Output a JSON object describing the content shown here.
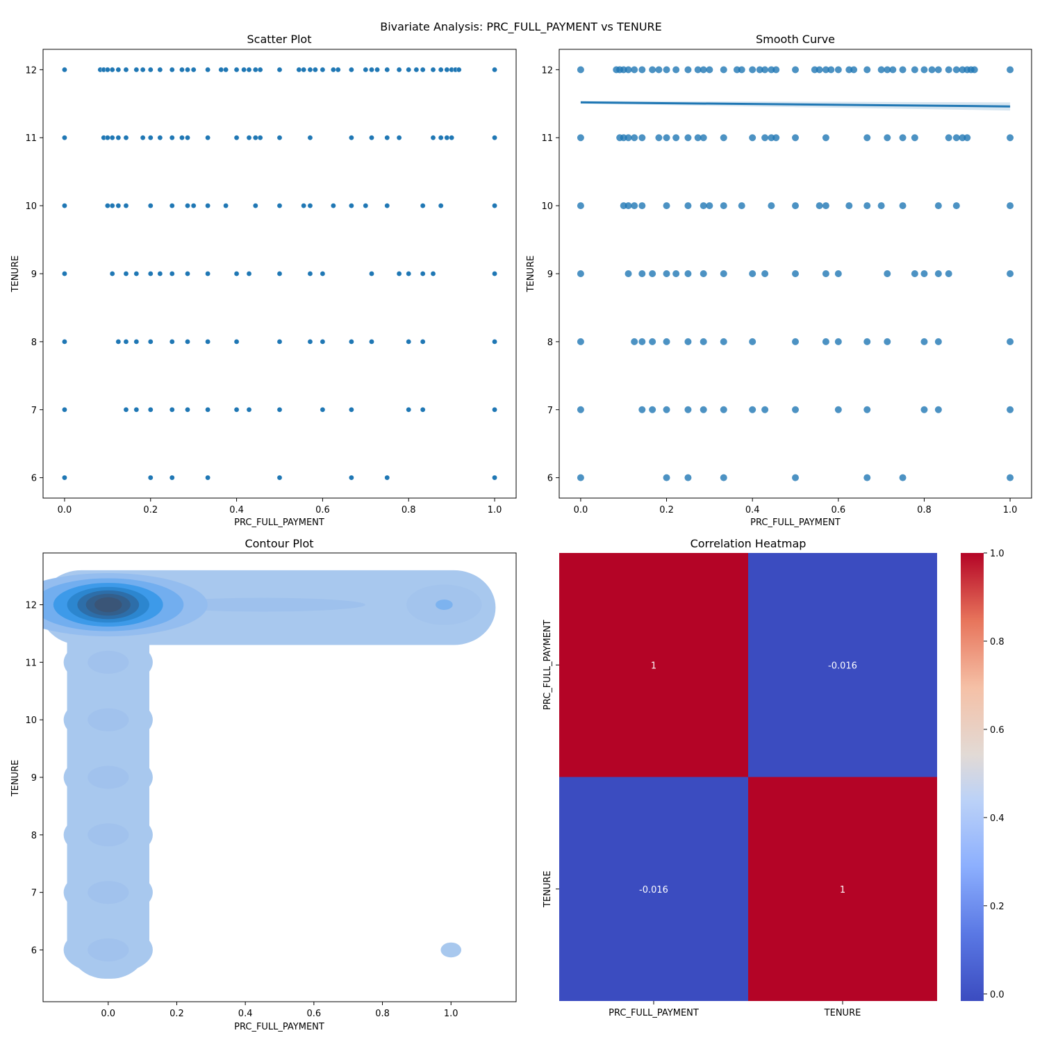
{
  "figure": {
    "suptitle": "Bivariate Analysis: PRC_FULL_PAYMENT vs TENURE"
  },
  "colors": {
    "point": "#1f77b4",
    "kde_low": "#a8c8ee",
    "kde_high": "#2f5077",
    "heat_high": "#b40426",
    "heat_low": "#3b4cc0"
  },
  "chart_data": [
    {
      "type": "scatter",
      "title": "Scatter Plot",
      "xlabel": "PRC_FULL_PAYMENT",
      "ylabel": "TENURE",
      "xlim": [
        -0.05,
        1.05
      ],
      "ylim": [
        5.7,
        12.3
      ],
      "xticks": [
        "0.0",
        "0.2",
        "0.4",
        "0.6",
        "0.8",
        "1.0"
      ],
      "yticks": [
        "6",
        "7",
        "8",
        "9",
        "10",
        "11",
        "12"
      ],
      "series": [
        {
          "y": 12,
          "x": [
            0,
            0.083,
            0.091,
            0.1,
            0.111,
            0.125,
            0.143,
            0.167,
            0.182,
            0.2,
            0.222,
            0.25,
            0.273,
            0.286,
            0.3,
            0.333,
            0.364,
            0.375,
            0.4,
            0.417,
            0.429,
            0.444,
            0.455,
            0.5,
            0.545,
            0.556,
            0.571,
            0.583,
            0.6,
            0.625,
            0.636,
            0.667,
            0.7,
            0.714,
            0.727,
            0.75,
            0.778,
            0.8,
            0.818,
            0.833,
            0.857,
            0.875,
            0.889,
            0.9,
            0.909,
            0.917,
            1.0
          ]
        },
        {
          "y": 11,
          "x": [
            0,
            0.091,
            0.1,
            0.111,
            0.125,
            0.143,
            0.182,
            0.2,
            0.222,
            0.25,
            0.273,
            0.286,
            0.333,
            0.4,
            0.429,
            0.444,
            0.455,
            0.5,
            0.571,
            0.667,
            0.714,
            0.75,
            0.778,
            0.857,
            0.875,
            0.889,
            0.9,
            1.0
          ]
        },
        {
          "y": 10,
          "x": [
            0,
            0.1,
            0.111,
            0.125,
            0.143,
            0.2,
            0.25,
            0.286,
            0.3,
            0.333,
            0.375,
            0.444,
            0.5,
            0.556,
            0.571,
            0.625,
            0.667,
            0.7,
            0.75,
            0.833,
            0.875,
            1.0
          ]
        },
        {
          "y": 9,
          "x": [
            0,
            0.111,
            0.143,
            0.167,
            0.2,
            0.222,
            0.25,
            0.286,
            0.333,
            0.4,
            0.429,
            0.5,
            0.571,
            0.6,
            0.714,
            0.778,
            0.8,
            0.833,
            0.857,
            1.0
          ]
        },
        {
          "y": 8,
          "x": [
            0,
            0.125,
            0.143,
            0.167,
            0.2,
            0.25,
            0.286,
            0.333,
            0.4,
            0.5,
            0.571,
            0.6,
            0.667,
            0.714,
            0.8,
            0.833,
            1.0
          ]
        },
        {
          "y": 7,
          "x": [
            0,
            0.143,
            0.167,
            0.2,
            0.25,
            0.286,
            0.333,
            0.4,
            0.429,
            0.5,
            0.6,
            0.667,
            0.8,
            0.833,
            1.0
          ]
        },
        {
          "y": 6,
          "x": [
            0,
            0.2,
            0.25,
            0.333,
            0.5,
            0.667,
            0.75,
            1.0
          ]
        }
      ]
    },
    {
      "type": "scatter",
      "title": "Smooth Curve",
      "xlabel": "PRC_FULL_PAYMENT",
      "ylabel": "TENURE",
      "xlim": [
        -0.05,
        1.05
      ],
      "ylim": [
        5.7,
        12.3
      ],
      "xticks": [
        "0.0",
        "0.2",
        "0.4",
        "0.6",
        "0.8",
        "1.0"
      ],
      "yticks": [
        "6",
        "7",
        "8",
        "9",
        "10",
        "11",
        "12"
      ],
      "series": [
        {
          "y": 12,
          "x": [
            0,
            0.083,
            0.091,
            0.1,
            0.111,
            0.125,
            0.143,
            0.167,
            0.182,
            0.2,
            0.222,
            0.25,
            0.273,
            0.286,
            0.3,
            0.333,
            0.364,
            0.375,
            0.4,
            0.417,
            0.429,
            0.444,
            0.455,
            0.5,
            0.545,
            0.556,
            0.571,
            0.583,
            0.6,
            0.625,
            0.636,
            0.667,
            0.7,
            0.714,
            0.727,
            0.75,
            0.778,
            0.8,
            0.818,
            0.833,
            0.857,
            0.875,
            0.889,
            0.9,
            0.909,
            0.917,
            1.0
          ]
        },
        {
          "y": 11,
          "x": [
            0,
            0.091,
            0.1,
            0.111,
            0.125,
            0.143,
            0.182,
            0.2,
            0.222,
            0.25,
            0.273,
            0.286,
            0.333,
            0.4,
            0.429,
            0.444,
            0.455,
            0.5,
            0.571,
            0.667,
            0.714,
            0.75,
            0.778,
            0.857,
            0.875,
            0.889,
            0.9,
            1.0
          ]
        },
        {
          "y": 10,
          "x": [
            0,
            0.1,
            0.111,
            0.125,
            0.143,
            0.2,
            0.25,
            0.286,
            0.3,
            0.333,
            0.375,
            0.444,
            0.5,
            0.556,
            0.571,
            0.625,
            0.667,
            0.7,
            0.75,
            0.833,
            0.875,
            1.0
          ]
        },
        {
          "y": 9,
          "x": [
            0,
            0.111,
            0.143,
            0.167,
            0.2,
            0.222,
            0.25,
            0.286,
            0.333,
            0.4,
            0.429,
            0.5,
            0.571,
            0.6,
            0.714,
            0.778,
            0.8,
            0.833,
            0.857,
            1.0
          ]
        },
        {
          "y": 8,
          "x": [
            0,
            0.125,
            0.143,
            0.167,
            0.2,
            0.25,
            0.286,
            0.333,
            0.4,
            0.5,
            0.571,
            0.6,
            0.667,
            0.714,
            0.8,
            0.833,
            1.0
          ]
        },
        {
          "y": 7,
          "x": [
            0,
            0.143,
            0.167,
            0.2,
            0.25,
            0.286,
            0.333,
            0.4,
            0.429,
            0.5,
            0.6,
            0.667,
            0.8,
            0.833,
            1.0
          ]
        },
        {
          "y": 6,
          "x": [
            0,
            0.2,
            0.25,
            0.333,
            0.5,
            0.667,
            0.75,
            1.0
          ]
        }
      ],
      "regression": {
        "x": [
          0,
          1.0
        ],
        "y": [
          11.52,
          11.46
        ],
        "ci_half_width": [
          0.02,
          0.06
        ]
      }
    },
    {
      "type": "area",
      "title": "Contour Plot",
      "xlabel": "PRC_FULL_PAYMENT",
      "ylabel": "TENURE",
      "xlim": [
        -0.19,
        1.19
      ],
      "ylim": [
        5.1,
        12.9
      ],
      "xticks": [
        "0.0",
        "0.2",
        "0.4",
        "0.6",
        "0.8",
        "1.0"
      ],
      "yticks": [
        "6",
        "7",
        "8",
        "9",
        "10",
        "11",
        "12"
      ],
      "density_peaks": [
        {
          "x": 0.0,
          "y": 12,
          "level": 1.0
        },
        {
          "x": 0.98,
          "y": 12,
          "level": 0.25
        },
        {
          "x": 0.5,
          "y": 12,
          "level": 0.15
        },
        {
          "x": 0.0,
          "y": 11,
          "level": 0.12
        },
        {
          "x": 0.0,
          "y": 10,
          "level": 0.12
        },
        {
          "x": 0.0,
          "y": 9,
          "level": 0.1
        },
        {
          "x": 0.0,
          "y": 8,
          "level": 0.1
        },
        {
          "x": 0.0,
          "y": 7,
          "level": 0.1
        },
        {
          "x": 0.0,
          "y": 6,
          "level": 0.1
        },
        {
          "x": 1.0,
          "y": 6,
          "level": 0.05
        }
      ]
    },
    {
      "type": "heatmap",
      "title": "Correlation Heatmap",
      "rows": [
        "PRC_FULL_PAYMENT",
        "TENURE"
      ],
      "cols": [
        "PRC_FULL_PAYMENT",
        "TENURE"
      ],
      "values": [
        [
          1,
          -0.016
        ],
        [
          -0.016,
          1
        ]
      ],
      "annotations": [
        [
          "1",
          "-0.016"
        ],
        [
          "-0.016",
          "1"
        ]
      ],
      "colorbar": {
        "min": -0.016,
        "max": 1.0,
        "ticks": [
          "0.0",
          "0.2",
          "0.4",
          "0.6",
          "0.8",
          "1.0"
        ]
      }
    }
  ]
}
